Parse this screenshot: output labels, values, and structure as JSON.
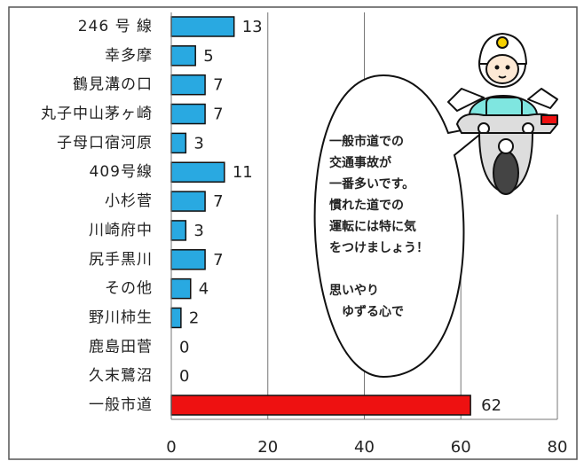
{
  "chart_data": {
    "type": "hbar",
    "categories": [
      "246 号 線",
      "幸多摩",
      "鶴見溝の口",
      "丸子中山茅ヶ崎",
      "子母口宿河原",
      "409号線",
      "小杉菅",
      "川崎府中",
      "尻手黒川",
      "その他",
      "野川柿生",
      "鹿島田菅",
      "久末鷺沼",
      "一般市道"
    ],
    "values": [
      13,
      5,
      7,
      7,
      3,
      11,
      7,
      3,
      7,
      4,
      2,
      0,
      0,
      62
    ],
    "colors": [
      "#29a9e1",
      "#29a9e1",
      "#29a9e1",
      "#29a9e1",
      "#29a9e1",
      "#29a9e1",
      "#29a9e1",
      "#29a9e1",
      "#29a9e1",
      "#29a9e1",
      "#29a9e1",
      "#29a9e1",
      "#29a9e1",
      "#ee1111"
    ],
    "xlim": [
      0,
      80
    ],
    "xticks": [
      0,
      20,
      40,
      60,
      80
    ],
    "grid": true,
    "annotations": [
      {
        "lines": [
          "一般市道での",
          "交通事故が",
          "一番多いです。",
          "慣れた道での",
          "運転には特に気",
          "をつけましょう！"
        ]
      },
      {
        "lines": [
          "思いやり",
          "　ゆずる心で"
        ]
      }
    ]
  }
}
